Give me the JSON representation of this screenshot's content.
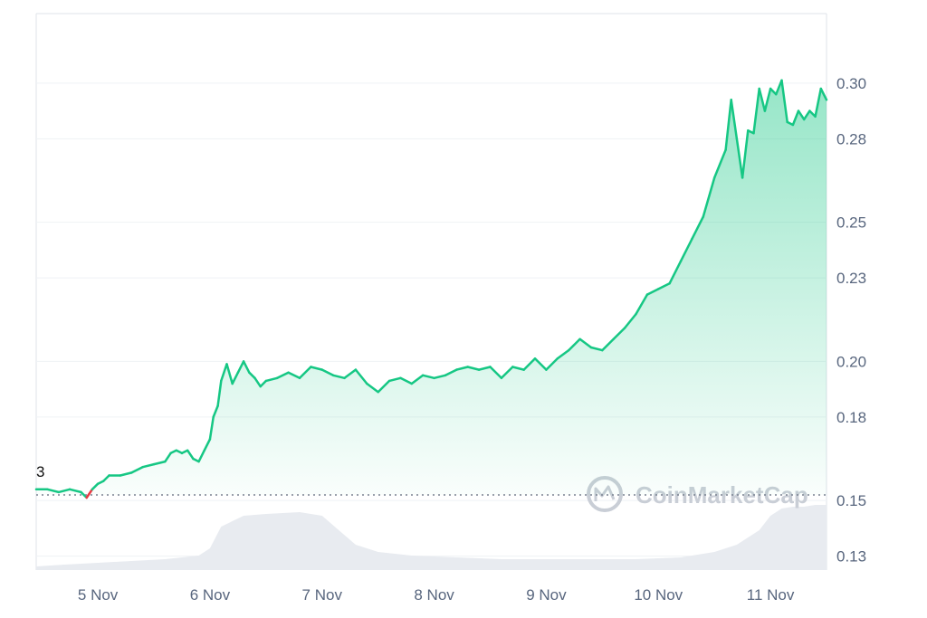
{
  "chart_data": {
    "type": "area",
    "x_ticks": [
      "5 Nov",
      "6 Nov",
      "7 Nov",
      "8 Nov",
      "9 Nov",
      "10 Nov",
      "11 Nov"
    ],
    "y_ticks": [
      "0.30",
      "0.28",
      "0.25",
      "0.23",
      "0.20",
      "0.18",
      "0.15",
      "0.13"
    ],
    "ylim": [
      0.125,
      0.325
    ],
    "baseline": 0.152,
    "marker_label": "3",
    "grid": true,
    "colors": {
      "up": "#16c784",
      "down": "#ea3943",
      "volume": "#e8ebf0",
      "grid": "#eff2f5",
      "text": "#58667e"
    },
    "series": [
      {
        "x": [
          4.45,
          4.55,
          4.65,
          4.75,
          4.85,
          4.9,
          4.95,
          5.0,
          5.05,
          5.1,
          5.2,
          5.3,
          5.4,
          5.5,
          5.6,
          5.65,
          5.7,
          5.75,
          5.8,
          5.85,
          5.9,
          5.95,
          6.0,
          6.03,
          6.07,
          6.1,
          6.15,
          6.2,
          6.25,
          6.3,
          6.35,
          6.4,
          6.45,
          6.5,
          6.6,
          6.7,
          6.8,
          6.9,
          7.0,
          7.1,
          7.2,
          7.3,
          7.4,
          7.5,
          7.6,
          7.7,
          7.8,
          7.9,
          8.0,
          8.1,
          8.2,
          8.3,
          8.4,
          8.5,
          8.6,
          8.7,
          8.8,
          8.9,
          9.0,
          9.1,
          9.2,
          9.3,
          9.4,
          9.5,
          9.6,
          9.7,
          9.8,
          9.9,
          10.0,
          10.1,
          10.2,
          10.3,
          10.4,
          10.5,
          10.6,
          10.65,
          10.7,
          10.75,
          10.8,
          10.85,
          10.9,
          10.95,
          11.0,
          11.05,
          11.1,
          11.15,
          11.2,
          11.25,
          11.3,
          11.35,
          11.4,
          11.45,
          11.5
        ],
        "y": [
          0.154,
          0.154,
          0.153,
          0.154,
          0.153,
          0.151,
          0.154,
          0.156,
          0.157,
          0.159,
          0.159,
          0.16,
          0.162,
          0.163,
          0.164,
          0.167,
          0.168,
          0.167,
          0.168,
          0.165,
          0.164,
          0.168,
          0.172,
          0.18,
          0.184,
          0.193,
          0.199,
          0.192,
          0.196,
          0.2,
          0.196,
          0.194,
          0.191,
          0.193,
          0.194,
          0.196,
          0.194,
          0.198,
          0.197,
          0.195,
          0.194,
          0.197,
          0.192,
          0.189,
          0.193,
          0.194,
          0.192,
          0.195,
          0.194,
          0.195,
          0.197,
          0.198,
          0.197,
          0.198,
          0.194,
          0.198,
          0.197,
          0.201,
          0.197,
          0.201,
          0.204,
          0.208,
          0.205,
          0.204,
          0.208,
          0.212,
          0.217,
          0.224,
          0.226,
          0.228,
          0.236,
          0.244,
          0.252,
          0.266,
          0.276,
          0.294,
          0.28,
          0.266,
          0.283,
          0.282,
          0.298,
          0.29,
          0.298,
          0.296,
          0.301,
          0.286,
          0.285,
          0.29,
          0.287,
          0.29,
          0.288,
          0.298,
          0.294
        ]
      }
    ],
    "volume": {
      "x": [
        4.45,
        4.7,
        5.0,
        5.3,
        5.6,
        5.9,
        6.0,
        6.1,
        6.3,
        6.5,
        6.8,
        7.0,
        7.15,
        7.3,
        7.5,
        7.8,
        8.2,
        8.6,
        9.0,
        9.4,
        9.8,
        10.2,
        10.5,
        10.7,
        10.9,
        11.0,
        11.1,
        11.2,
        11.3,
        11.4,
        11.5
      ],
      "y": [
        0.002,
        0.003,
        0.004,
        0.005,
        0.006,
        0.008,
        0.012,
        0.024,
        0.03,
        0.031,
        0.032,
        0.03,
        0.022,
        0.014,
        0.01,
        0.008,
        0.007,
        0.006,
        0.006,
        0.006,
        0.006,
        0.007,
        0.01,
        0.014,
        0.022,
        0.03,
        0.034,
        0.035,
        0.035,
        0.036,
        0.036
      ],
      "ymax": 0.06
    }
  },
  "watermark": {
    "text": "CoinMarketCap"
  }
}
